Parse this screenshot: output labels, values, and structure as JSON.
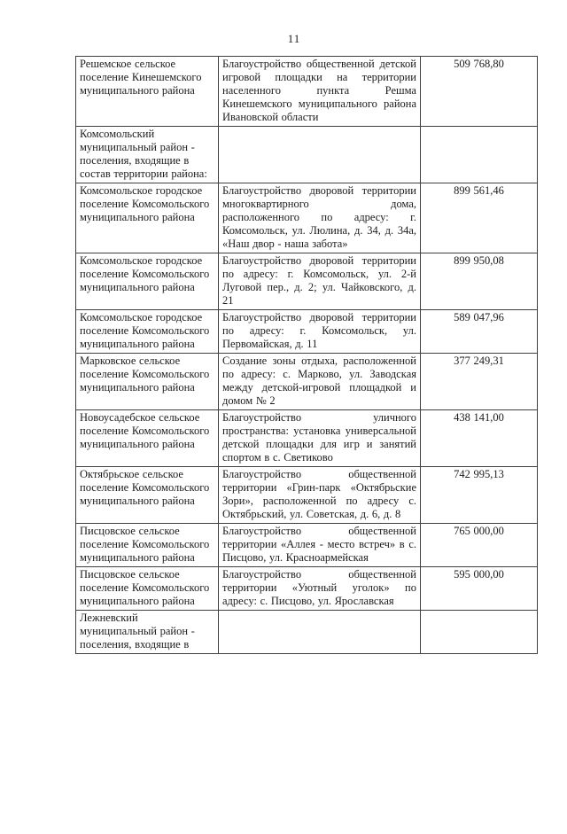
{
  "page": {
    "number": "11"
  },
  "colors": {
    "background": "#ffffff",
    "text": "#1c1c1c",
    "table_border": "#3f3f3f"
  },
  "table": {
    "columns": [
      "municipality",
      "project",
      "amount"
    ],
    "rows": [
      {
        "municipality": "Решемское сельское поселение Кинешемского муниципального района",
        "project": "Благоустройство общественной детской игровой площадки на территории населенного пункта Решма Кинешемского муниципального района Ивановской области",
        "amount": "509 768,80"
      },
      {
        "municipality": "Комсомольский муниципальный район - поселения, входящие в состав территории района:",
        "project": "",
        "amount": ""
      },
      {
        "municipality": "Комсомольское городское поселение Комсомольского муниципального района",
        "project": "Благоустройство дворовой территории многоквартирного дома, расположенного по адресу: г. Комсомольск, ул. Люлина, д. 34, д. 34а, «Наш двор - наша забота»",
        "amount": "899 561,46"
      },
      {
        "municipality": "Комсомольское городское поселение Комсомольского муниципального района",
        "project": "Благоустройство дворовой территории по адресу: г. Комсомольск, ул. 2-й Луговой пер., д. 2; ул. Чайковского, д. 21",
        "amount": "899 950,08"
      },
      {
        "municipality": "Комсомольское городское поселение Комсомольского муниципального района",
        "project": "Благоустройство дворовой территории по адресу: г. Комсомольск, ул. Первомайская, д. 11",
        "amount": "589 047,96"
      },
      {
        "municipality": "Марковское сельское поселение Комсомольского муниципального района",
        "project": "Создание зоны отдыха, расположенной по адресу: с. Марково, ул. Заводская между детской-игровой площадкой и домом № 2",
        "amount": "377 249,31"
      },
      {
        "municipality": "Новоусадебское сельское поселение Комсомольского муниципального района",
        "project": "Благоустройство уличного пространства: установка универсальной детской площадки для игр и занятий спортом в с. Светиково",
        "amount": "438 141,00"
      },
      {
        "municipality": "Октябрьское сельское поселение Комсомольского муниципального района",
        "project": "Благоустройство общественной территории «Грин-парк «Октябрьские Зори», расположенной по адресу с. Октябрьский, ул. Советская, д. 6, д. 8",
        "amount": "742 995,13"
      },
      {
        "municipality": "Писцовское сельское поселение Комсомольского муниципального района",
        "project": "Благоустройство общественной территории «Аллея - место встреч» в с. Писцово, ул. Красноармейская",
        "amount": "765 000,00"
      },
      {
        "municipality": "Писцовское сельское поселение Комсомольского муниципального района",
        "project": "Благоустройство общественной территории «Уютный уголок» по адресу: с. Писцово, ул. Ярославская",
        "amount": "595 000,00"
      },
      {
        "municipality": "Лежневский муниципальный район - поселения, входящие в",
        "project": "",
        "amount": ""
      }
    ]
  }
}
